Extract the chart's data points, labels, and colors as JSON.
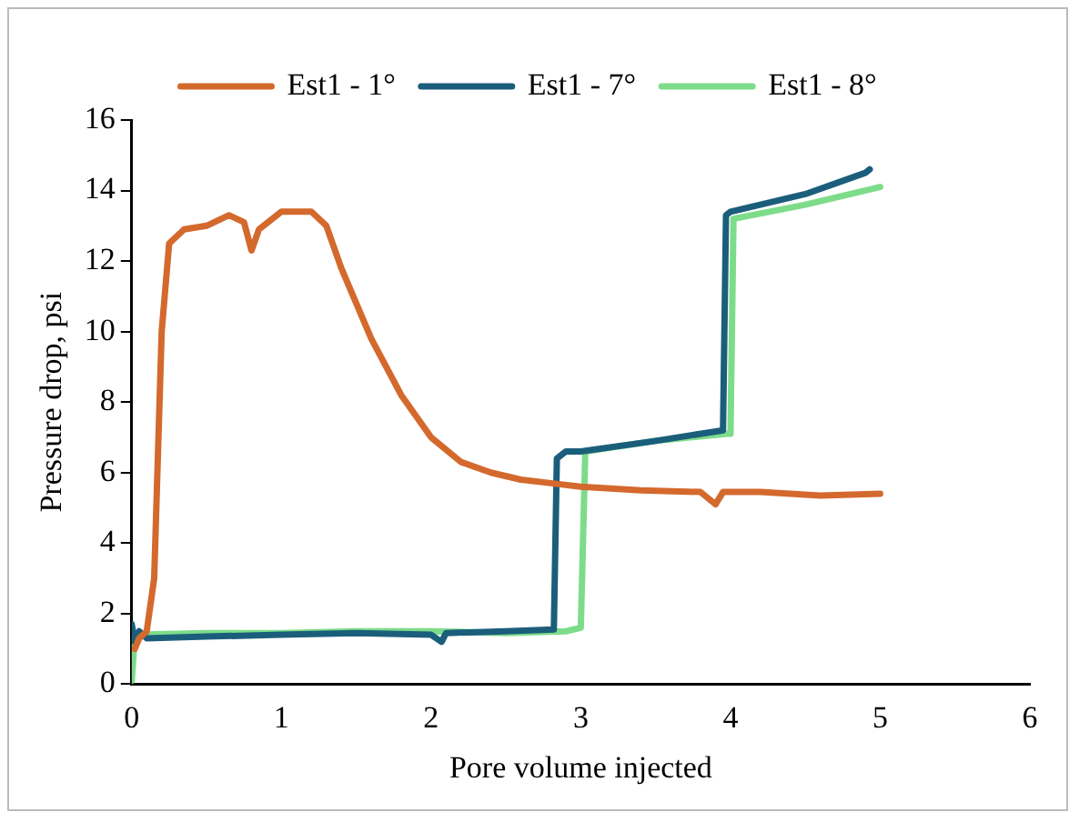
{
  "chart_data": {
    "type": "line",
    "xlabel": "Pore volume injected",
    "ylabel": "Pressure drop, psi",
    "xlim": [
      0,
      6
    ],
    "xticks": [
      0,
      1,
      2,
      3,
      4,
      5,
      6
    ],
    "ylim": [
      0,
      16
    ],
    "yticks": [
      0,
      2,
      4,
      6,
      8,
      10,
      12,
      14,
      16
    ],
    "grid": false,
    "legend": "top",
    "marker": "none",
    "line_style": "solid",
    "series": [
      {
        "name": "Est1 - 1°",
        "color": "#d4692e",
        "x": [
          0.02,
          0.05,
          0.1,
          0.15,
          0.2,
          0.25,
          0.35,
          0.5,
          0.65,
          0.75,
          0.8,
          0.85,
          1.0,
          1.2,
          1.3,
          1.4,
          1.6,
          1.8,
          2.0,
          2.2,
          2.4,
          2.6,
          2.8,
          3.0,
          3.4,
          3.8,
          3.9,
          3.95,
          4.2,
          4.6,
          5.0
        ],
        "values": [
          1.0,
          1.3,
          1.5,
          3,
          10,
          12.5,
          12.9,
          13.0,
          13.3,
          13.1,
          12.3,
          12.9,
          13.4,
          13.4,
          13.0,
          11.8,
          9.8,
          8.2,
          7.0,
          6.3,
          6.0,
          5.8,
          5.7,
          5.6,
          5.5,
          5.45,
          5.1,
          5.45,
          5.45,
          5.35,
          5.4
        ]
      },
      {
        "name": "Est1 - 7°",
        "color": "#1b5e7b",
        "x": [
          0,
          0.02,
          0.05,
          0.1,
          0.5,
          1.0,
          1.5,
          2.0,
          2.07,
          2.1,
          2.5,
          2.82,
          2.84,
          2.9,
          3.0,
          3.5,
          3.95,
          3.97,
          4.0,
          4.5,
          4.9,
          4.93
        ],
        "values": [
          1.7,
          1.2,
          1.5,
          1.3,
          1.35,
          1.4,
          1.45,
          1.4,
          1.2,
          1.45,
          1.5,
          1.55,
          6.4,
          6.6,
          6.6,
          6.9,
          7.2,
          13.3,
          13.4,
          13.9,
          14.5,
          14.6
        ]
      },
      {
        "name": "Est1 - 8°",
        "color": "#7ddc8a",
        "x": [
          0,
          0.02,
          0.05,
          0.5,
          1.0,
          1.5,
          2.0,
          2.5,
          2.9,
          3.0,
          3.03,
          3.5,
          3.98,
          4.0,
          4.02,
          4.5,
          5.0
        ],
        "values": [
          0.1,
          1.3,
          1.4,
          1.45,
          1.45,
          1.5,
          1.5,
          1.45,
          1.5,
          1.6,
          6.6,
          6.9,
          7.1,
          7.1,
          13.2,
          13.6,
          14.1
        ]
      }
    ]
  }
}
